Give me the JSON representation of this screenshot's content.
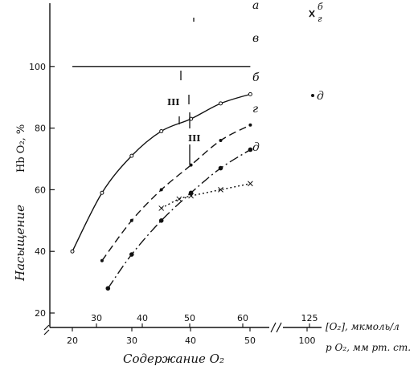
{
  "chart_data": {
    "type": "line",
    "ylabel_main": "Насыщение",
    "ylabel_sub": "Hb O₂, %",
    "xlabel": "Содержание  O₂",
    "ylim": [
      15,
      100
    ],
    "yticks": [
      "20",
      "40",
      "60",
      "80",
      "100"
    ],
    "x_axis_bottom": {
      "label": "p O₂, мм рт. ст.",
      "ticks": [
        "20",
        "30",
        "40",
        "50",
        "100"
      ]
    },
    "x_axis_top": {
      "label": "[O₂], мкмоль/л",
      "ticks": [
        "30",
        "40",
        "50",
        "60",
        "125"
      ]
    },
    "series": [
      {
        "name": "а",
        "x": [
          20,
          25,
          30,
          35,
          40,
          45,
          50
        ],
        "y": [
          100,
          100,
          100,
          100,
          100,
          100,
          100
        ]
      },
      {
        "name": "в",
        "x": [
          20,
          25,
          30,
          35,
          40,
          45,
          50
        ],
        "y": [
          40,
          59,
          71,
          79,
          83,
          88,
          91
        ]
      },
      {
        "name": "б",
        "x": [
          25,
          30,
          35,
          40,
          45,
          50
        ],
        "y": [
          37,
          50,
          60,
          68,
          76,
          81
        ]
      },
      {
        "name": "г",
        "x": [
          26,
          30,
          35,
          40,
          45,
          50
        ],
        "y": [
          28,
          39,
          50,
          59,
          67,
          73
        ]
      },
      {
        "name": "д",
        "x": [
          35,
          38,
          40,
          45,
          50
        ],
        "y": [
          54,
          57,
          58,
          60,
          62
        ]
      }
    ],
    "legend_markers": [
      "б",
      "г",
      "д"
    ],
    "annotations": [
      "III",
      "III"
    ],
    "grid": false
  }
}
